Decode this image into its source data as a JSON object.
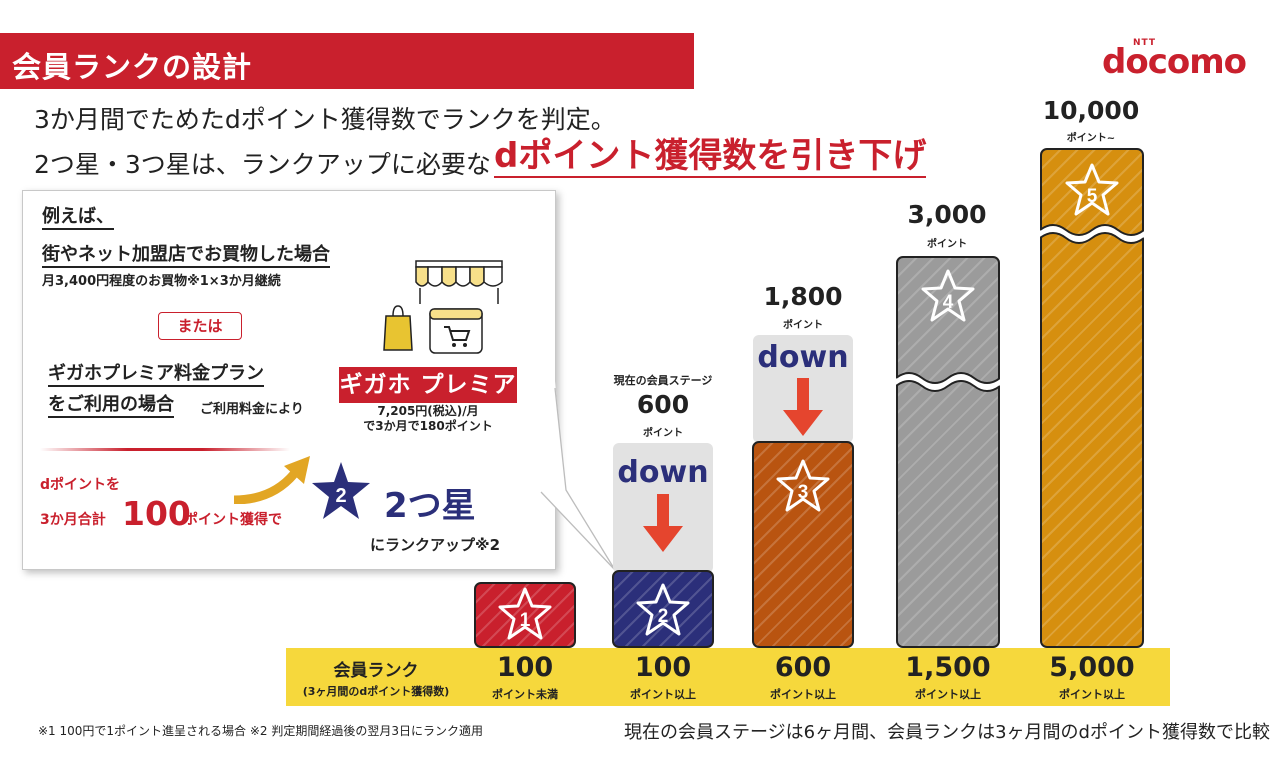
{
  "header": {
    "title": "会員ランクの設計",
    "logo_small": "NTT",
    "logo_brand": "docomo"
  },
  "lead": {
    "line1": "3か月間でためたdポイント獲得数でランクを判定。",
    "line2": "2つ星・3つ星は、ランクアップに必要な",
    "line2_highlight": "dポイント獲得数を引き下げ"
  },
  "example": {
    "heading": "例えば、",
    "shop_title": "街やネット加盟店でお買物した場合",
    "shop_sub": "月3,400円程度のお買物※1×3か月継続",
    "or_label": "または",
    "giga_title_1": "ギガホプレミア料金プラン",
    "giga_title_2": "をご利用の場合",
    "giga_sub": "ご利用料金により",
    "giga_logo": "ギガホ プレミア",
    "giga_price_1": "7,205円(税込)/月",
    "giga_price_2": "で3か月で180ポイント",
    "dpoint_1": "dポイントを",
    "dpoint_2": "3か月合計",
    "dpoint_num": "100",
    "dpoint_3": "ポイント獲得で",
    "star_digit": "2",
    "result": "2つ星",
    "rankup": "にランクアップ※2"
  },
  "ranks": [
    {
      "star": "1",
      "color": "#c9202d"
    },
    {
      "star": "2",
      "color": "#2b2f7a",
      "old_value": "600",
      "old_unit": "ポイント",
      "old_caption": "現在の会員ステージ",
      "change": "down"
    },
    {
      "star": "3",
      "color": "#b95410",
      "old_value": "1,800",
      "old_unit": "ポイント",
      "change": "down"
    },
    {
      "star": "4",
      "color": "#9b9b9b",
      "old_value": "3,000",
      "old_unit": "ポイント"
    },
    {
      "star": "5",
      "color": "#d68f0f",
      "old_value": "10,000",
      "old_unit": "ポイント~"
    }
  ],
  "band": {
    "title": "会員ランク",
    "subtitle": "(3ヶ月間のdポイント獲得数)",
    "thresholds": [
      {
        "num": "100",
        "unit": "ポイント未満"
      },
      {
        "num": "100",
        "unit": "ポイント以上"
      },
      {
        "num": "600",
        "unit": "ポイント以上"
      },
      {
        "num": "1,500",
        "unit": "ポイント以上"
      },
      {
        "num": "5,000",
        "unit": "ポイント以上"
      }
    ],
    "color": "#f6d83c"
  },
  "footnotes": {
    "left": "※1 100円で1ポイント進呈される場合 ※2 判定期間経過後の翌月3日にランク適用",
    "right": "現在の会員ステージは6ヶ月間、会員ランクは3ヶ月間のdポイント獲得数で比較"
  },
  "colors": {
    "accent": "#c9202d",
    "navy": "#2b2f7a",
    "arrow": "#e5452e"
  }
}
